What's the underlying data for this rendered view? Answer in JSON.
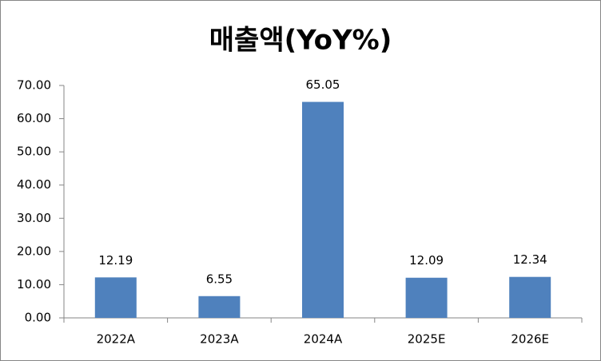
{
  "chart_data": {
    "type": "bar",
    "title": "매출액(YoY%)",
    "categories": [
      "2022A",
      "2023A",
      "2024A",
      "2025E",
      "2026E"
    ],
    "values": [
      12.19,
      6.55,
      65.05,
      12.09,
      12.34
    ],
    "color": "#4f81bd",
    "ylim": [
      0,
      70
    ],
    "yticks": [
      {
        "value": 0,
        "label": "0.00"
      },
      {
        "value": 10,
        "label": "10.00"
      },
      {
        "value": 20,
        "label": "20.00"
      },
      {
        "value": 30,
        "label": "30.00"
      },
      {
        "value": 40,
        "label": "40.00"
      },
      {
        "value": 50,
        "label": "50.00"
      },
      {
        "value": 60,
        "label": "60.00"
      },
      {
        "value": 70,
        "label": "70.00"
      }
    ],
    "grid": false
  }
}
